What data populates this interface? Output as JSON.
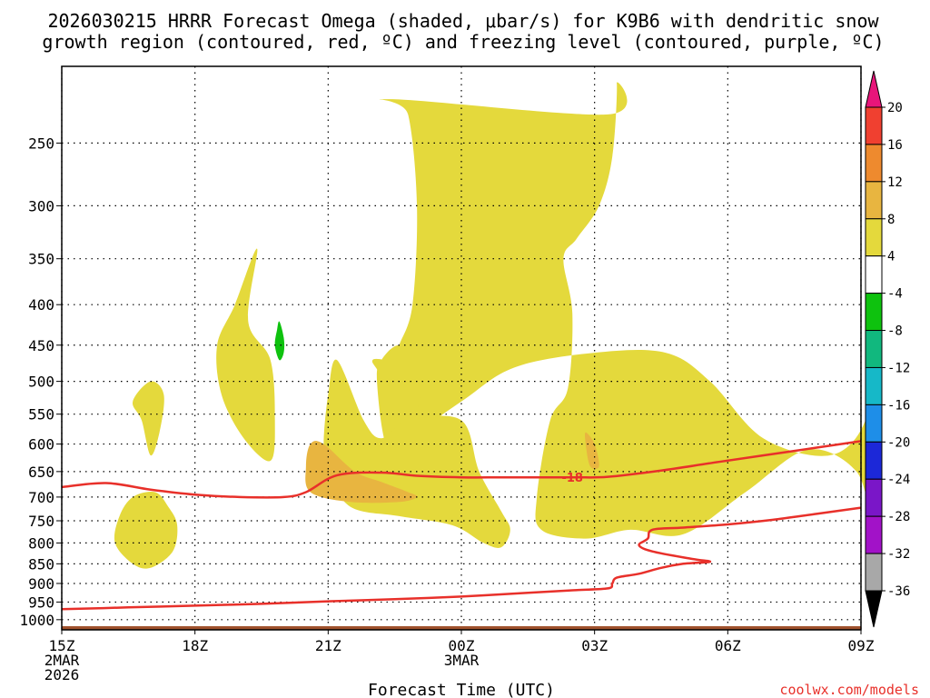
{
  "chart_data": {
    "type": "heatmap",
    "title_line1": "2026030215 HRRR Forecast Omega (shaded, μbar/s) for K9B6 with dendritic snow",
    "title_line2": "growth region (contoured, red, ºC) and freezing level (contoured, purple, ºC)",
    "xlabel": "Forecast Time (UTC)",
    "credit": "coolwx.com/models",
    "x_ticks": [
      {
        "hour": 0,
        "lines": [
          "15Z",
          "2MAR",
          "2026"
        ]
      },
      {
        "hour": 3,
        "lines": [
          "18Z"
        ]
      },
      {
        "hour": 6,
        "lines": [
          "21Z"
        ]
      },
      {
        "hour": 9,
        "lines": [
          "00Z",
          "3MAR"
        ]
      },
      {
        "hour": 12,
        "lines": [
          "03Z"
        ]
      },
      {
        "hour": 15,
        "lines": [
          "06Z"
        ]
      },
      {
        "hour": 18,
        "lines": [
          "09Z"
        ]
      }
    ],
    "xlim": [
      0,
      18
    ],
    "y_ticks": [
      250,
      300,
      350,
      400,
      450,
      500,
      550,
      600,
      650,
      700,
      750,
      800,
      850,
      900,
      950,
      1000
    ],
    "ylim": [
      200,
      1030
    ],
    "y_scale": "log-pressure (inverted)",
    "grid": "dotted",
    "colorbar": {
      "labels": [
        "20",
        "16",
        "12",
        "8",
        "4",
        "-4",
        "-8",
        "-12",
        "-16",
        "-20",
        "-24",
        "-28",
        "-32",
        "-36"
      ],
      "colors": [
        "#e8157a",
        "#f04030",
        "#ee8a2e",
        "#e8b540",
        "#e4d93c",
        "#ffffff",
        "#0ec20e",
        "#11b87e",
        "#16b8c8",
        "#1e8ee8",
        "#1c28d8",
        "#7a16c8",
        "#a212c8",
        "#a8a8a8",
        "#000000"
      ]
    },
    "omega_regions": [
      {
        "level": "4 to 8",
        "color": "#e4d93c",
        "points": [
          [
            7.4,
            220
          ],
          [
            7.8,
            230
          ],
          [
            8.0,
            300
          ],
          [
            7.9,
            400
          ],
          [
            7.6,
            450
          ],
          [
            7.5,
            470
          ],
          [
            7.0,
            470
          ],
          [
            7.2,
            500
          ],
          [
            7.3,
            600
          ],
          [
            7.6,
            600
          ],
          [
            9.0,
            530
          ],
          [
            10.2,
            480
          ],
          [
            12.0,
            460
          ],
          [
            13.6,
            460
          ],
          [
            14.6,
            500
          ],
          [
            15.8,
            590
          ],
          [
            17.3,
            620
          ],
          [
            18.1,
            560
          ],
          [
            18.2,
            460
          ],
          [
            18.3,
            430
          ],
          [
            18.3,
            560
          ],
          [
            18.3,
            760
          ],
          [
            17.9,
            650
          ],
          [
            16.8,
            610
          ],
          [
            15.4,
            690
          ],
          [
            14.0,
            780
          ],
          [
            12.8,
            770
          ],
          [
            11.8,
            790
          ],
          [
            10.8,
            770
          ],
          [
            10.7,
            700
          ],
          [
            11.0,
            560
          ],
          [
            11.4,
            510
          ],
          [
            11.5,
            410
          ],
          [
            11.3,
            350
          ],
          [
            11.6,
            330
          ],
          [
            12.1,
            300
          ],
          [
            12.4,
            260
          ],
          [
            12.5,
            210
          ],
          [
            12.3,
            230
          ]
        ]
      },
      {
        "level": "4 to 8",
        "color": "#e4d93c",
        "points": [
          [
            7.6,
            450
          ],
          [
            8.1,
            470
          ],
          [
            8.0,
            550
          ],
          [
            7.7,
            600
          ],
          [
            7.3,
            600
          ],
          [
            7.1,
            500
          ],
          [
            7.2,
            470
          ]
        ]
      },
      {
        "level": "4 to 8",
        "color": "#e4d93c",
        "points": [
          [
            4.4,
            340
          ],
          [
            4.2,
            420
          ],
          [
            4.7,
            470
          ],
          [
            4.8,
            560
          ],
          [
            4.7,
            630
          ],
          [
            4.1,
            590
          ],
          [
            3.6,
            520
          ],
          [
            3.5,
            450
          ],
          [
            3.9,
            400
          ]
        ]
      },
      {
        "level": "4 to 8",
        "color": "#e4d93c",
        "points": [
          [
            6.2,
            470
          ],
          [
            6.8,
            560
          ],
          [
            7.2,
            590
          ],
          [
            7.8,
            560
          ],
          [
            9.0,
            560
          ],
          [
            9.4,
            650
          ],
          [
            9.9,
            730
          ],
          [
            10.1,
            770
          ],
          [
            9.9,
            810
          ],
          [
            9.5,
            800
          ],
          [
            8.8,
            760
          ],
          [
            7.6,
            740
          ],
          [
            6.5,
            720
          ],
          [
            6.0,
            650
          ],
          [
            5.9,
            600
          ],
          [
            6.0,
            520
          ]
        ]
      },
      {
        "level": "4 to 8",
        "color": "#e4d93c",
        "points": [
          [
            2.0,
            500
          ],
          [
            2.3,
            520
          ],
          [
            2.2,
            580
          ],
          [
            2.0,
            620
          ],
          [
            1.8,
            560
          ],
          [
            1.6,
            530
          ]
        ]
      },
      {
        "level": "4 to 8",
        "color": "#e4d93c",
        "points": [
          [
            2.1,
            690
          ],
          [
            2.4,
            720
          ],
          [
            2.6,
            760
          ],
          [
            2.5,
            820
          ],
          [
            2.0,
            860
          ],
          [
            1.6,
            850
          ],
          [
            1.2,
            800
          ],
          [
            1.3,
            740
          ],
          [
            1.6,
            700
          ]
        ]
      },
      {
        "level": "8 to 12",
        "color": "#e8b540",
        "points": [
          [
            5.9,
            600
          ],
          [
            6.6,
            650
          ],
          [
            7.2,
            670
          ],
          [
            7.8,
            690
          ],
          [
            8.0,
            700
          ],
          [
            7.6,
            710
          ],
          [
            6.5,
            710
          ],
          [
            5.6,
            690
          ],
          [
            5.5,
            640
          ],
          [
            5.6,
            600
          ]
        ]
      },
      {
        "level": "8 to 12",
        "color": "#e8b540",
        "points": [
          [
            11.8,
            580
          ],
          [
            12.0,
            600
          ],
          [
            12.1,
            640
          ],
          [
            11.9,
            640
          ],
          [
            11.8,
            600
          ]
        ]
      },
      {
        "level": "-8 to -4",
        "color": "#0ec20e",
        "points": [
          [
            4.9,
            420
          ],
          [
            5.0,
            440
          ],
          [
            5.0,
            460
          ],
          [
            4.9,
            470
          ],
          [
            4.8,
            450
          ],
          [
            4.85,
            430
          ]
        ]
      }
    ],
    "contours": [
      {
        "label": "-18",
        "color": "#e8302a",
        "points": [
          [
            0,
            680
          ],
          [
            1.0,
            672
          ],
          [
            2.0,
            685
          ],
          [
            3.0,
            695
          ],
          [
            4.0,
            700
          ],
          [
            5.0,
            700
          ],
          [
            5.5,
            690
          ],
          [
            6.2,
            657
          ],
          [
            7.2,
            652
          ],
          [
            8.0,
            658
          ],
          [
            9.0,
            661
          ],
          [
            10.0,
            661
          ],
          [
            11.5,
            661
          ],
          [
            12.3,
            660
          ],
          [
            13.5,
            648
          ],
          [
            14.8,
            632
          ],
          [
            16.5,
            612
          ],
          [
            18,
            595
          ]
        ]
      },
      {
        "label": "",
        "color": "#e8302a",
        "points": [
          [
            0,
            970
          ],
          [
            1.5,
            965
          ],
          [
            3.0,
            960
          ],
          [
            4.5,
            955
          ],
          [
            6.0,
            948
          ],
          [
            7.5,
            942
          ],
          [
            9.0,
            935
          ],
          [
            10.5,
            925
          ],
          [
            11.5,
            918
          ],
          [
            12.3,
            913
          ],
          [
            12.4,
            900
          ],
          [
            12.5,
            885
          ],
          [
            13.0,
            875
          ],
          [
            13.5,
            860
          ],
          [
            14.0,
            850
          ],
          [
            14.6,
            845
          ],
          [
            14.2,
            838
          ],
          [
            13.3,
            820
          ],
          [
            13.0,
            805
          ],
          [
            13.2,
            790
          ],
          [
            13.3,
            770
          ],
          [
            14.0,
            765
          ],
          [
            15.0,
            758
          ],
          [
            16.0,
            748
          ],
          [
            17.0,
            735
          ],
          [
            18.0,
            722
          ]
        ]
      }
    ],
    "terrain_pressure": 1025
  }
}
